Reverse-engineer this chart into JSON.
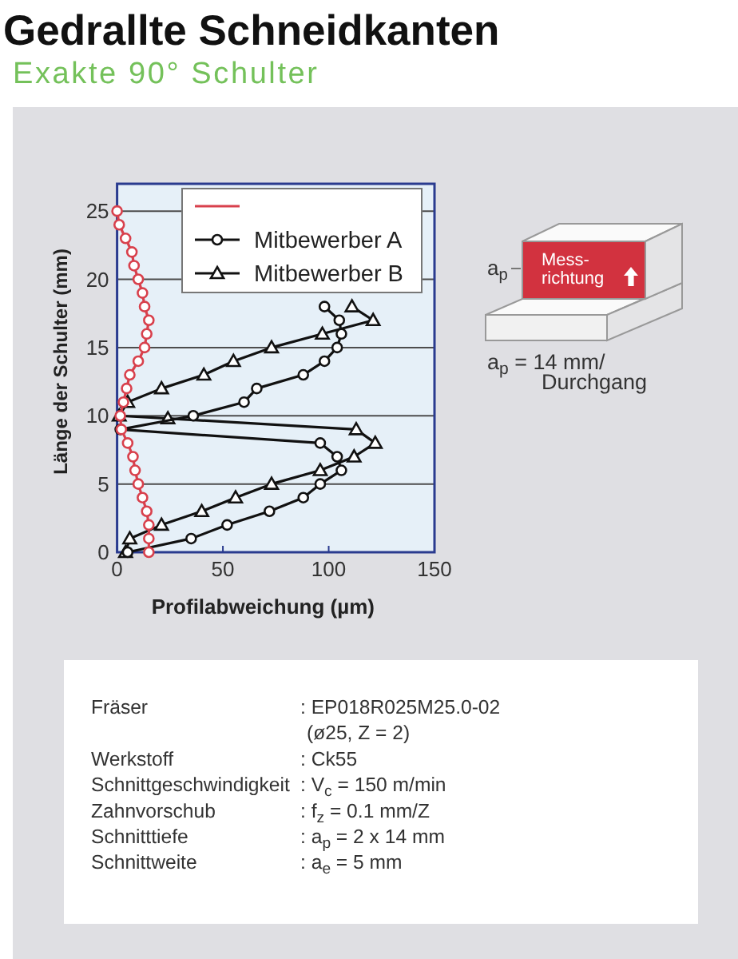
{
  "chart_data": {
    "type": "line",
    "title": "Gedrallte Schneidkanten",
    "subtitle": "Exakte 90° Schulter",
    "xlabel": "Profilabweichung (µm)",
    "ylabel": "Länge der Schulter (mm)",
    "xlim": [
      0,
      150
    ],
    "xticks": [
      0,
      50,
      100,
      150
    ],
    "ylim": [
      0,
      27
    ],
    "yticks": [
      0,
      5,
      10,
      15,
      20,
      25
    ],
    "grid": "y",
    "legend": "top right",
    "series": [
      {
        "color": "#d8404c",
        "marker": "circle",
        "x": [
          0,
          1,
          4,
          7,
          8,
          10,
          12,
          13,
          15,
          14,
          13,
          10,
          6,
          4.5,
          3,
          1.5,
          2,
          5,
          7.5,
          8.5,
          10,
          12,
          14,
          15,
          15,
          15
        ],
        "values": [
          25,
          24,
          23,
          22,
          21,
          20,
          19,
          18,
          17,
          16,
          15,
          14,
          13,
          12,
          11,
          10,
          9,
          8,
          7,
          6,
          5,
          4,
          3,
          2,
          1,
          0
        ]
      },
      {
        "name": "Mitbewerber A",
        "color": "#111111",
        "marker": "circle",
        "x": [
          5,
          35,
          52,
          72,
          88,
          96,
          106,
          104,
          96,
          1.5,
          36,
          60,
          66,
          88,
          98,
          104,
          106,
          105,
          98
        ],
        "values": [
          0,
          1,
          2,
          3,
          4,
          5,
          6,
          7,
          8,
          9,
          10,
          11,
          12,
          13,
          14,
          15,
          16,
          17,
          18
        ]
      },
      {
        "name": "Mitbewerber B",
        "color": "#111111",
        "marker": "triangle",
        "x": [
          4,
          6,
          21,
          40,
          56,
          73,
          96,
          112,
          122,
          113,
          24,
          1,
          5,
          21,
          41,
          55,
          73,
          97,
          121,
          111
        ],
        "values": [
          0,
          1,
          2,
          3,
          4,
          5,
          6,
          7,
          8,
          9,
          9.8,
          10,
          11,
          12,
          13,
          14,
          15,
          16,
          17,
          18
        ]
      }
    ],
    "annotations": [
      "a$_{p}$",
      "Mess-\nrichtung",
      "a$_{p}$ = 14 mm/\nDurchgang",
      "Fräser",
      ": EP018R025M25.0-02\n(ø25, Z = 2)",
      "Werkstoff",
      ": Ck55",
      "Schnittgeschwindigkeit",
      ": V$_{c}$ = 150 m/min",
      "Zahnvorschub",
      ": f$_{z}$ = 0.1 mm/Z",
      "Schnitttiefe",
      ": a$_{p}$ = 2 x 14 mm",
      "Schnittweite",
      ": a$_{e}$ = 5 mm"
    ]
  }
}
